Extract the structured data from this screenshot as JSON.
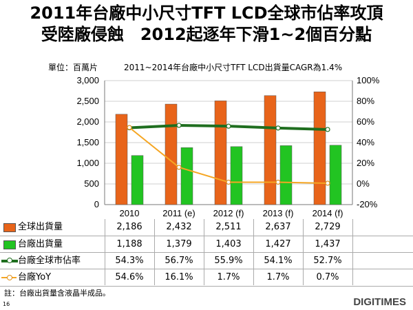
{
  "title": {
    "line1": "2011年台廠中小尺寸TFT LCD全球市佔率攻頂",
    "line2": "受陸廠侵蝕　2012起逐年下滑1~2個百分點"
  },
  "unit_label": "單位：百萬片",
  "cagr_note": "2011~2014年台廠中小尺寸TFT LCD出貨量CAGR為1.4%",
  "footnote": "註：台廠出貨量含液晶半成品。",
  "page_number": "16",
  "brand": "DIGITIMES",
  "chart_data": {
    "type": "bar",
    "categories": [
      "2010",
      "2011 (e)",
      "2012 (f)",
      "2013 (f)",
      "2014 (f)"
    ],
    "y_left": {
      "ticks": [
        "0",
        "500",
        "1,000",
        "1,500",
        "2,000",
        "2,500",
        "3,000"
      ],
      "ylim": [
        0,
        3000
      ]
    },
    "y_right": {
      "ticks": [
        "-20%",
        "0%",
        "20%",
        "40%",
        "60%",
        "80%",
        "100%"
      ],
      "ylim": [
        -20,
        100
      ]
    },
    "series": [
      {
        "name": "全球出貨量",
        "kind": "bar",
        "axis": "left",
        "color": "#e8641a",
        "values": [
          2186,
          2432,
          2511,
          2637,
          2729
        ],
        "labels": [
          "2,186",
          "2,432",
          "2,511",
          "2,637",
          "2,729"
        ]
      },
      {
        "name": "台廠出貨量",
        "kind": "bar",
        "axis": "left",
        "color": "#22c422",
        "values": [
          1188,
          1379,
          1403,
          1427,
          1437
        ],
        "labels": [
          "1,188",
          "1,379",
          "1,403",
          "1,427",
          "1,437"
        ]
      },
      {
        "name": "台廠全球市佔率",
        "kind": "line",
        "axis": "right",
        "color": "#1f6e1f",
        "values": [
          54.3,
          56.7,
          55.9,
          54.1,
          52.7
        ],
        "labels": [
          "54.3%",
          "56.7%",
          "55.9%",
          "54.1%",
          "52.7%"
        ]
      },
      {
        "name": "台廠YoY",
        "kind": "line",
        "axis": "right",
        "color": "#f5a623",
        "values": [
          54.6,
          16.1,
          1.7,
          1.7,
          0.7
        ],
        "labels": [
          "54.6%",
          "16.1%",
          "1.7%",
          "1.7%",
          "0.7%"
        ]
      }
    ]
  }
}
